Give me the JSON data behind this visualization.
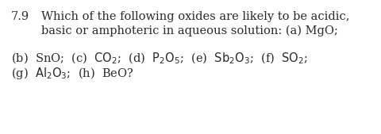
{
  "background_color": "#ffffff",
  "number": "7.9",
  "line1": "Which of the following oxides are likely to be acidic,",
  "line2": "basic or amphoteric in aqueous solution: (a) MgO;",
  "line3": "(b)  SnO;  (c)  $\\mathrm{CO_2}$;  (d)  $\\mathrm{P_2O_5}$;  (e)  $\\mathrm{Sb_2O_3}$;  (f)  $\\mathrm{SO_2}$;",
  "line4": "(g)  $\\mathrm{Al_2O_3}$;  (h)  BeO?",
  "text_color": "#2a2a2a",
  "font_size": 10.5
}
